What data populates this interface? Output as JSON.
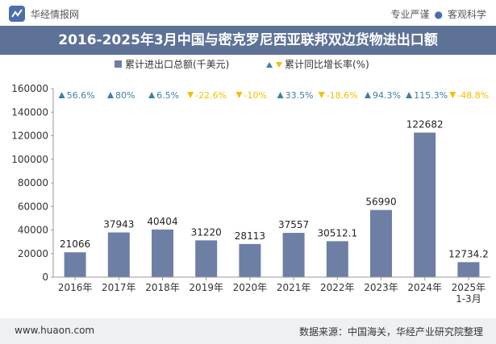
{
  "header": {
    "brand_name": "华经情报网",
    "tagline_left": "专业严谨",
    "tagline_right": "客观科学",
    "title": "2016-2025年3月中国与密克罗尼西亚联邦双边货物进出口额"
  },
  "footer": {
    "website": "www.huaon.com",
    "source": "数据来源：中国海关，华经产业研究院整理"
  },
  "colors": {
    "bar": "#6e7fa6",
    "title_bar": "#5e7297",
    "up": "#3f7fa3",
    "down": "#f0c000"
  },
  "chart_data": {
    "type": "bar",
    "legend": {
      "bar_label": "累计进出口总额(千美元)",
      "line_label": "累计同比增长率(%)",
      "placement": "top"
    },
    "categories": [
      "2016年",
      "2017年",
      "2018年",
      "2019年",
      "2020年",
      "2021年",
      "2022年",
      "2023年",
      "2024年",
      "2025年 1-3月"
    ],
    "category_lines": [
      [
        "2016年"
      ],
      [
        "2017年"
      ],
      [
        "2018年"
      ],
      [
        "2019年"
      ],
      [
        "2020年"
      ],
      [
        "2021年"
      ],
      [
        "2022年"
      ],
      [
        "2023年"
      ],
      [
        "2024年"
      ],
      [
        "2025年",
        "1-3月"
      ]
    ],
    "series": [
      {
        "values": [
          21066,
          37943,
          40404,
          31220,
          28113,
          37557,
          30512.1,
          56990,
          122682,
          12734.2
        ],
        "labels": [
          "21066",
          "37943",
          "40404",
          "31220",
          "28113",
          "37557",
          "30512.1",
          "56990",
          "122682",
          "12734.2"
        ]
      }
    ],
    "growth_rate": {
      "values": [
        56.6,
        80,
        6.5,
        -22.6,
        -10,
        33.5,
        -18.6,
        94.3,
        115.3,
        -48.8
      ],
      "labels": [
        "56.6%",
        "80%",
        "6.5%",
        "-22.6%",
        "-10%",
        "33.5%",
        "-18.6%",
        "94.3%",
        "115.3%",
        "-48.8%"
      ]
    },
    "ylim": [
      0,
      160000
    ],
    "yticks": [
      0,
      20000,
      40000,
      60000,
      80000,
      100000,
      120000,
      140000,
      160000
    ],
    "grid": false
  }
}
